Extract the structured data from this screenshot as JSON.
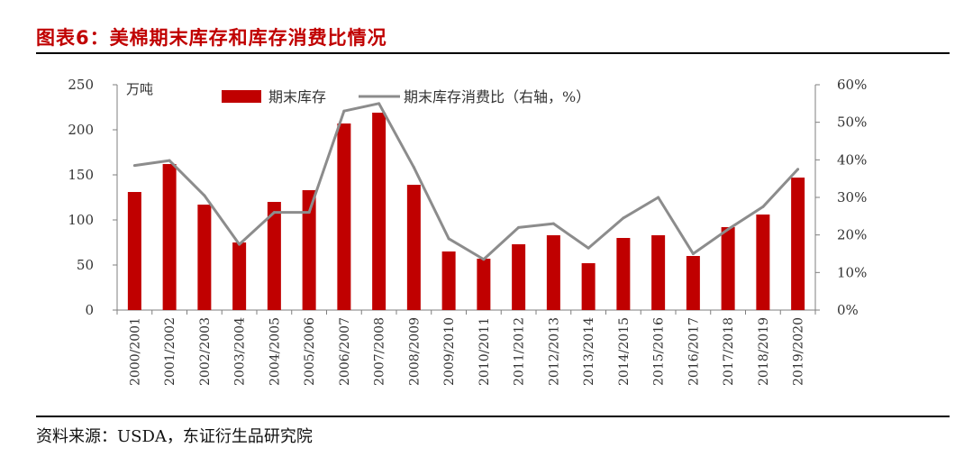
{
  "figure": {
    "title": "图表6：美棉期末库存和库存消费比情况",
    "source": "资料来源：USDA，东证衍生品研究院"
  },
  "colors": {
    "bar": "#c00000",
    "line": "#8c8c8c",
    "title": "#c00000"
  },
  "chart_data": {
    "type": "bar",
    "categories": [
      "2000/2001",
      "2001/2002",
      "2002/2003",
      "2003/2004",
      "2004/2005",
      "2005/2006",
      "2006/2007",
      "2007/2008",
      "2008/2009",
      "2009/2010",
      "2010/2011",
      "2011/2012",
      "2012/2013",
      "2013/2014",
      "2014/2015",
      "2015/2016",
      "2016/2017",
      "2017/2018",
      "2018/2019",
      "2019/2020"
    ],
    "y_unit_label": "万吨",
    "ylim": [
      0,
      250
    ],
    "y_ticks": [
      "0",
      "50",
      "100",
      "150",
      "200",
      "250"
    ],
    "y2lim": [
      0,
      60
    ],
    "y2_ticks": [
      "0%",
      "10%",
      "20%",
      "30%",
      "40%",
      "50%",
      "60%"
    ],
    "legend_position": "top-center",
    "grid": false,
    "series": [
      {
        "name": "期末库存",
        "type": "bar",
        "axis": "left",
        "values": [
          131,
          162,
          117,
          75,
          120,
          133,
          207,
          219,
          139,
          65,
          57,
          73,
          83,
          52,
          80,
          83,
          60,
          92,
          106,
          147
        ]
      },
      {
        "name": "期末库存消费比（右轴，%）",
        "type": "line",
        "axis": "right",
        "values": [
          38.5,
          39.8,
          30.5,
          17.5,
          26,
          26,
          53,
          55,
          38,
          19,
          13.5,
          22,
          23,
          16.5,
          24.5,
          30,
          15,
          21.5,
          27.5,
          37.5
        ]
      }
    ]
  }
}
